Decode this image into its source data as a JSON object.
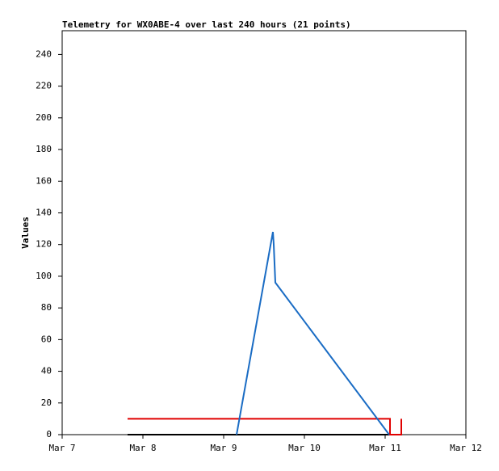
{
  "chart_data": {
    "type": "line",
    "title": "Telemetry for WX0ABE-4 over last 240 hours (21 points)",
    "y_label": "Values",
    "xlim": [
      7,
      12
    ],
    "xticks": [
      {
        "value": 7,
        "label": "Mar 7"
      },
      {
        "value": 8,
        "label": "Mar 8"
      },
      {
        "value": 9,
        "label": "Mar 9"
      },
      {
        "value": 10,
        "label": "Mar 10"
      },
      {
        "value": 11,
        "label": "Mar 11"
      },
      {
        "value": 12,
        "label": "Mar 12"
      }
    ],
    "ylim": [
      0,
      255
    ],
    "yticks": [
      0,
      20,
      40,
      60,
      80,
      100,
      120,
      140,
      160,
      180,
      200,
      220,
      240
    ],
    "series": [
      {
        "color": "#000000",
        "x": [
          7.81,
          11.2
        ],
        "values": [
          0,
          0
        ]
      },
      {
        "color": "#e00000",
        "x": [
          7.81,
          11.06,
          11.06,
          11.2,
          11.2
        ],
        "values": [
          10,
          10,
          0,
          0,
          10
        ]
      },
      {
        "color": "#1a6cc4",
        "x": [
          9.16,
          9.61,
          9.62,
          9.64,
          11.05
        ],
        "values": [
          0,
          128,
          120,
          96,
          0
        ]
      }
    ]
  }
}
